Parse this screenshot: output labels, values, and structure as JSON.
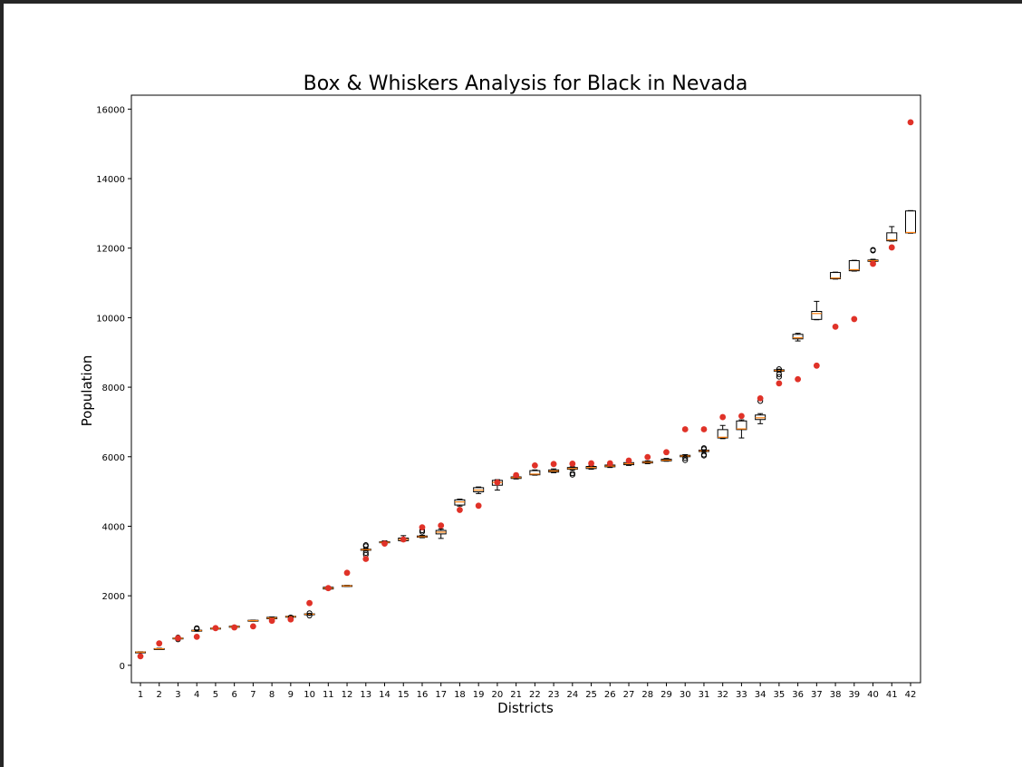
{
  "chart_data": {
    "type": "box",
    "title": "Box & Whiskers Analysis for Black in Nevada",
    "xlabel": "Districts",
    "ylabel": "Population",
    "ylim": [
      -500,
      16400
    ],
    "yticks": [
      0,
      2000,
      4000,
      6000,
      8000,
      10000,
      12000,
      14000,
      16000
    ],
    "grid": false,
    "categories": [
      "1",
      "2",
      "3",
      "4",
      "5",
      "6",
      "7",
      "8",
      "9",
      "10",
      "11",
      "12",
      "13",
      "14",
      "15",
      "16",
      "17",
      "18",
      "19",
      "20",
      "21",
      "22",
      "23",
      "24",
      "25",
      "26",
      "27",
      "28",
      "29",
      "30",
      "31",
      "32",
      "33",
      "34",
      "35",
      "36",
      "37",
      "38",
      "39",
      "40",
      "41",
      "42"
    ],
    "colors": {
      "box": "#000000",
      "median": "#ff7f0e",
      "marker": "#e03228",
      "flier": "#000000"
    },
    "boxes": [
      {
        "wlo": 370,
        "q1": 375,
        "med": 380,
        "q3": 385,
        "whi": 390,
        "fliers": []
      },
      {
        "wlo": 465,
        "q1": 470,
        "med": 475,
        "q3": 480,
        "whi": 490,
        "fliers": []
      },
      {
        "wlo": 755,
        "q1": 765,
        "med": 775,
        "q3": 785,
        "whi": 795,
        "fliers": [
          745,
          800
        ]
      },
      {
        "wlo": 980,
        "q1": 990,
        "med": 1000,
        "q3": 1010,
        "whi": 1020,
        "fliers": [
          1050,
          1070
        ]
      },
      {
        "wlo": 1040,
        "q1": 1050,
        "med": 1060,
        "q3": 1070,
        "whi": 1080,
        "fliers": []
      },
      {
        "wlo": 1085,
        "q1": 1095,
        "med": 1110,
        "q3": 1125,
        "whi": 1135,
        "fliers": []
      },
      {
        "wlo": 1270,
        "q1": 1275,
        "med": 1285,
        "q3": 1295,
        "whi": 1300,
        "fliers": []
      },
      {
        "wlo": 1330,
        "q1": 1340,
        "med": 1360,
        "q3": 1380,
        "whi": 1390,
        "fliers": []
      },
      {
        "wlo": 1390,
        "q1": 1395,
        "med": 1400,
        "q3": 1410,
        "whi": 1420,
        "fliers": [
          1380
        ]
      },
      {
        "wlo": 1450,
        "q1": 1460,
        "med": 1470,
        "q3": 1480,
        "whi": 1490,
        "fliers": [
          1430,
          1500
        ]
      },
      {
        "wlo": 2180,
        "q1": 2195,
        "med": 2220,
        "q3": 2245,
        "whi": 2260,
        "fliers": []
      },
      {
        "wlo": 2270,
        "q1": 2275,
        "med": 2285,
        "q3": 2295,
        "whi": 2300,
        "fliers": []
      },
      {
        "wlo": 3290,
        "q1": 3310,
        "med": 3325,
        "q3": 3340,
        "whi": 3360,
        "fliers": [
          3180,
          3230,
          3430,
          3460
        ]
      },
      {
        "wlo": 3510,
        "q1": 3525,
        "med": 3540,
        "q3": 3555,
        "whi": 3580,
        "fliers": []
      },
      {
        "wlo": 3570,
        "q1": 3585,
        "med": 3620,
        "q3": 3660,
        "whi": 3730,
        "fliers": []
      },
      {
        "wlo": 3670,
        "q1": 3685,
        "med": 3700,
        "q3": 3720,
        "whi": 3740,
        "fliers": [
          3840,
          3880
        ]
      },
      {
        "wlo": 3650,
        "q1": 3780,
        "med": 3830,
        "q3": 3880,
        "whi": 3920,
        "fliers": []
      },
      {
        "wlo": 4580,
        "q1": 4610,
        "med": 4700,
        "q3": 4760,
        "whi": 4780,
        "fliers": []
      },
      {
        "wlo": 4940,
        "q1": 4990,
        "med": 5040,
        "q3": 5110,
        "whi": 5130,
        "fliers": []
      },
      {
        "wlo": 5040,
        "q1": 5180,
        "med": 5260,
        "q3": 5320,
        "whi": 5340,
        "fliers": []
      },
      {
        "wlo": 5360,
        "q1": 5375,
        "med": 5400,
        "q3": 5420,
        "whi": 5430,
        "fliers": []
      },
      {
        "wlo": 5470,
        "q1": 5480,
        "med": 5500,
        "q3": 5600,
        "whi": 5620,
        "fliers": []
      },
      {
        "wlo": 5540,
        "q1": 5560,
        "med": 5590,
        "q3": 5620,
        "whi": 5650,
        "fliers": []
      },
      {
        "wlo": 5620,
        "q1": 5640,
        "med": 5660,
        "q3": 5690,
        "whi": 5710,
        "fliers": [
          5480,
          5520
        ]
      },
      {
        "wlo": 5640,
        "q1": 5660,
        "med": 5690,
        "q3": 5720,
        "whi": 5740,
        "fliers": []
      },
      {
        "wlo": 5690,
        "q1": 5710,
        "med": 5730,
        "q3": 5760,
        "whi": 5780,
        "fliers": []
      },
      {
        "wlo": 5750,
        "q1": 5770,
        "med": 5800,
        "q3": 5830,
        "whi": 5860,
        "fliers": []
      },
      {
        "wlo": 5800,
        "q1": 5820,
        "med": 5840,
        "q3": 5860,
        "whi": 5880,
        "fliers": []
      },
      {
        "wlo": 5870,
        "q1": 5880,
        "med": 5900,
        "q3": 5930,
        "whi": 5950,
        "fliers": []
      },
      {
        "wlo": 5990,
        "q1": 6000,
        "med": 6020,
        "q3": 6040,
        "whi": 6060,
        "fliers": [
          5900,
          5960
        ]
      },
      {
        "wlo": 6140,
        "q1": 6150,
        "med": 6170,
        "q3": 6190,
        "whi": 6200,
        "fliers": [
          6030,
          6060,
          6220,
          6250
        ]
      },
      {
        "wlo": 6520,
        "q1": 6540,
        "med": 6560,
        "q3": 6780,
        "whi": 6900,
        "fliers": []
      },
      {
        "wlo": 6540,
        "q1": 6780,
        "med": 6800,
        "q3": 7030,
        "whi": 7060,
        "fliers": []
      },
      {
        "wlo": 6950,
        "q1": 7070,
        "med": 7120,
        "q3": 7200,
        "whi": 7240,
        "fliers": [
          7600
        ]
      },
      {
        "wlo": 8440,
        "q1": 8460,
        "med": 8480,
        "q3": 8500,
        "whi": 8520,
        "fliers": [
          8300,
          8370,
          8520
        ]
      },
      {
        "wlo": 9330,
        "q1": 9390,
        "med": 9420,
        "q3": 9520,
        "whi": 9550,
        "fliers": []
      },
      {
        "wlo": 9940,
        "q1": 9950,
        "med": 10120,
        "q3": 10180,
        "whi": 10470,
        "fliers": []
      },
      {
        "wlo": 11110,
        "q1": 11120,
        "med": 11140,
        "q3": 11300,
        "whi": 11310,
        "fliers": []
      },
      {
        "wlo": 11340,
        "q1": 11350,
        "med": 11380,
        "q3": 11640,
        "whi": 11650,
        "fliers": []
      },
      {
        "wlo": 11600,
        "q1": 11620,
        "med": 11640,
        "q3": 11660,
        "whi": 11680,
        "fliers": [
          11930,
          11950
        ]
      },
      {
        "wlo": 12200,
        "q1": 12210,
        "med": 12240,
        "q3": 12440,
        "whi": 12620,
        "fliers": []
      },
      {
        "wlo": 12430,
        "q1": 12440,
        "med": 12450,
        "q3": 13070,
        "whi": 13080,
        "fliers": []
      }
    ],
    "actual": [
      260,
      630,
      780,
      820,
      1070,
      1090,
      1120,
      1280,
      1320,
      1790,
      2220,
      2660,
      3060,
      3500,
      3620,
      3970,
      4020,
      4470,
      4590,
      5260,
      5470,
      5750,
      5790,
      5800,
      5810,
      5810,
      5890,
      5990,
      6130,
      6790,
      6790,
      7140,
      7170,
      7680,
      8110,
      8230,
      8620,
      9740,
      9960,
      11550,
      12020,
      15620
    ]
  }
}
